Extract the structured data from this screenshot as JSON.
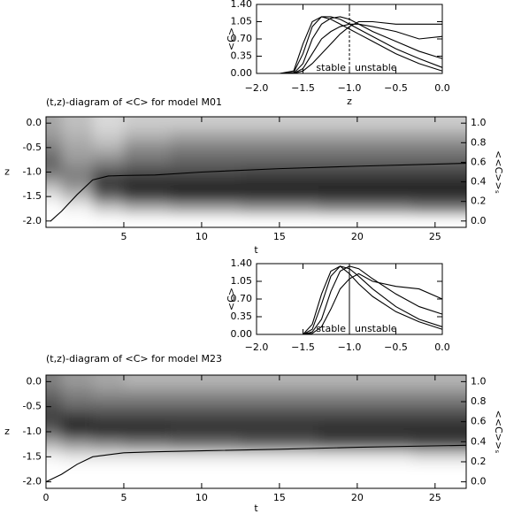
{
  "chart_data": [
    {
      "type": "line",
      "xlabel": "z",
      "ylabel": "<C>",
      "xlim": [
        -2,
        0
      ],
      "ylim": [
        0,
        1.4
      ],
      "xticks": [
        {
          "value": -2,
          "label": "−2.0"
        },
        {
          "value": -1.5,
          "label": "−1.5"
        },
        {
          "value": -1,
          "label": "−1.0"
        },
        {
          "value": -0.5,
          "label": "−0.5"
        },
        {
          "value": 0,
          "label": "0.0"
        }
      ],
      "yticks": [
        {
          "value": 0,
          "label": "0.00"
        },
        {
          "value": 0.35,
          "label": "0.35"
        },
        {
          "value": 0.7,
          "label": "0.70"
        },
        {
          "value": 1.05,
          "label": "1.05"
        },
        {
          "value": 1.4,
          "label": "1.40"
        }
      ],
      "vline": -1,
      "vline_dashed": true,
      "annotations": [
        "stable",
        "unstable"
      ],
      "x": [
        -2,
        -1.75,
        -1.6,
        -1.5,
        -1.4,
        -1.3,
        -1.2,
        -1.1,
        -1.0,
        -0.9,
        -0.75,
        -0.5,
        -0.25,
        0
      ],
      "series": [
        {
          "color": "#000000",
          "values": [
            0,
            0,
            0.05,
            0.6,
            1.05,
            1.15,
            1.1,
            1.0,
            0.9,
            0.8,
            0.65,
            0.4,
            0.2,
            0.05
          ]
        },
        {
          "color": "#000000",
          "values": [
            0,
            0,
            0.02,
            0.4,
            0.95,
            1.15,
            1.15,
            1.1,
            1.0,
            0.9,
            0.75,
            0.5,
            0.3,
            0.12
          ]
        },
        {
          "color": "#000000",
          "values": [
            0,
            0,
            0,
            0.2,
            0.7,
            1.0,
            1.12,
            1.15,
            1.1,
            1.0,
            0.85,
            0.65,
            0.45,
            0.3
          ]
        },
        {
          "color": "#000000",
          "values": [
            0,
            0,
            0,
            0.1,
            0.4,
            0.7,
            0.85,
            0.95,
            1.0,
            1.0,
            0.95,
            0.85,
            0.7,
            0.75
          ]
        },
        {
          "color": "#000000",
          "values": [
            0,
            0,
            0,
            0.05,
            0.2,
            0.4,
            0.6,
            0.8,
            0.95,
            1.05,
            1.05,
            1.0,
            1.0,
            1.0
          ]
        }
      ]
    },
    {
      "type": "heatmap",
      "title": "(t,z)-diagram of <C> for model M01",
      "xlabel": "t",
      "ylabel": "z",
      "y2label": "<<C>>ₛ",
      "xlim": [
        0,
        27
      ],
      "ylim": [
        -2.13,
        0.13
      ],
      "y2lim": [
        -0.065,
        1.065
      ],
      "xticks": [
        5,
        10,
        15,
        20,
        25
      ],
      "yticks": [
        {
          "value": -2,
          "label": "-2.0"
        },
        {
          "value": -1.5,
          "label": "-1.5"
        },
        {
          "value": -1,
          "label": "-1.0"
        },
        {
          "value": -0.5,
          "label": "-0.5"
        },
        {
          "value": 0,
          "label": "0.0"
        }
      ],
      "y2ticks": [
        {
          "value": 0,
          "label": "0.0"
        },
        {
          "value": 0.2,
          "label": "0.2"
        },
        {
          "value": 0.4,
          "label": "0.4"
        },
        {
          "value": 0.6,
          "label": "0.6"
        },
        {
          "value": 0.8,
          "label": "0.8"
        },
        {
          "value": 1,
          "label": "1.0"
        }
      ],
      "t": [
        0,
        2,
        4,
        6,
        10,
        15,
        20,
        27
      ],
      "z": [
        0,
        -0.25,
        -0.5,
        -0.75,
        -1.0,
        -1.25,
        -1.5,
        -1.75,
        -2.0
      ],
      "values": [
        [
          0.35,
          0.25,
          0.15,
          0.2,
          0.2,
          0.2,
          0.2,
          0.2
        ],
        [
          0.4,
          0.3,
          0.2,
          0.3,
          0.35,
          0.35,
          0.35,
          0.35
        ],
        [
          0.5,
          0.35,
          0.3,
          0.45,
          0.5,
          0.5,
          0.5,
          0.5
        ],
        [
          0.6,
          0.4,
          0.45,
          0.55,
          0.6,
          0.6,
          0.6,
          0.6
        ],
        [
          0.55,
          0.5,
          0.65,
          0.7,
          0.7,
          0.72,
          0.72,
          0.72
        ],
        [
          0.3,
          0.45,
          0.8,
          0.85,
          0.85,
          0.85,
          0.85,
          0.85
        ],
        [
          0.1,
          0.25,
          0.6,
          0.75,
          0.8,
          0.8,
          0.82,
          0.82
        ],
        [
          0,
          0.05,
          0.2,
          0.3,
          0.35,
          0.4,
          0.45,
          0.5
        ],
        [
          0,
          0,
          0,
          0,
          0,
          0,
          0,
          0
        ]
      ],
      "series": [
        {
          "color": "#000000",
          "axis": "y2",
          "x": [
            0.3,
            1,
            2,
            3,
            4,
            5,
            7,
            10,
            15,
            20,
            27
          ],
          "values": [
            0,
            0.1,
            0.27,
            0.42,
            0.46,
            0.465,
            0.47,
            0.5,
            0.535,
            0.56,
            0.59
          ]
        }
      ]
    },
    {
      "type": "line",
      "ylabel": "<C>",
      "xlim": [
        -2,
        0
      ],
      "ylim": [
        0,
        1.4
      ],
      "xticks": [
        {
          "value": -2,
          "label": "−2.0"
        },
        {
          "value": -1.5,
          "label": "−1.5"
        },
        {
          "value": -1,
          "label": "−1.0"
        },
        {
          "value": -0.5,
          "label": "−0.5"
        },
        {
          "value": 0,
          "label": "0.0"
        }
      ],
      "yticks": [
        {
          "value": 0,
          "label": "0.00"
        },
        {
          "value": 0.35,
          "label": "0.35"
        },
        {
          "value": 0.7,
          "label": "0.70"
        },
        {
          "value": 1.05,
          "label": "1.05"
        },
        {
          "value": 1.4,
          "label": "1.40"
        }
      ],
      "vline": -1,
      "vline_dashed": false,
      "annotations": [
        "stable",
        "unstable"
      ],
      "x": [
        -2,
        -1.75,
        -1.6,
        -1.5,
        -1.4,
        -1.3,
        -1.2,
        -1.1,
        -1.0,
        -0.9,
        -0.75,
        -0.5,
        -0.25,
        0
      ],
      "series": [
        {
          "color": "#000000",
          "values": [
            0,
            0,
            0,
            0,
            0.2,
            0.8,
            1.25,
            1.35,
            1.2,
            1.0,
            0.75,
            0.45,
            0.25,
            0.1
          ]
        },
        {
          "color": "#000000",
          "values": [
            0,
            0,
            0,
            0,
            0.1,
            0.6,
            1.15,
            1.35,
            1.3,
            1.15,
            0.9,
            0.55,
            0.3,
            0.15
          ]
        },
        {
          "color": "#000000",
          "values": [
            0,
            0,
            0,
            0,
            0.05,
            0.3,
            0.85,
            1.25,
            1.35,
            1.3,
            1.1,
            0.8,
            0.55,
            0.4
          ]
        },
        {
          "color": "#000000",
          "values": [
            0,
            0,
            0,
            0,
            0.02,
            0.15,
            0.5,
            0.9,
            1.1,
            1.2,
            1.05,
            0.95,
            0.9,
            0.7
          ]
        }
      ]
    },
    {
      "type": "heatmap",
      "title": "(t,z)-diagram of <C> for model M23",
      "xlabel": "t",
      "ylabel": "z",
      "y2label": "<<C>>ₛ",
      "xlim": [
        0,
        27
      ],
      "ylim": [
        -2.13,
        0.13
      ],
      "y2lim": [
        -0.065,
        1.065
      ],
      "xticks": [
        0,
        5,
        10,
        15,
        20,
        25
      ],
      "yticks": [
        {
          "value": -2,
          "label": "-2.0"
        },
        {
          "value": -1.5,
          "label": "-1.5"
        },
        {
          "value": -1,
          "label": "-1.0"
        },
        {
          "value": -0.5,
          "label": "-0.5"
        },
        {
          "value": 0,
          "label": "0.0"
        }
      ],
      "y2ticks": [
        {
          "value": 0,
          "label": "0.0"
        },
        {
          "value": 0.2,
          "label": "0.2"
        },
        {
          "value": 0.4,
          "label": "0.4"
        },
        {
          "value": 0.6,
          "label": "0.6"
        },
        {
          "value": 0.8,
          "label": "0.8"
        },
        {
          "value": 1,
          "label": "1.0"
        }
      ],
      "t": [
        0,
        2,
        4,
        6,
        10,
        15,
        20,
        27
      ],
      "z": [
        0,
        -0.25,
        -0.5,
        -0.75,
        -1.0,
        -1.25,
        -1.5,
        -1.75,
        -2.0
      ],
      "values": [
        [
          0.5,
          0.4,
          0.35,
          0.3,
          0.3,
          0.3,
          0.3,
          0.3
        ],
        [
          0.6,
          0.5,
          0.45,
          0.45,
          0.45,
          0.45,
          0.45,
          0.45
        ],
        [
          0.7,
          0.6,
          0.6,
          0.6,
          0.6,
          0.6,
          0.6,
          0.6
        ],
        [
          0.75,
          0.8,
          0.75,
          0.75,
          0.75,
          0.75,
          0.75,
          0.75
        ],
        [
          0.6,
          0.8,
          0.85,
          0.85,
          0.8,
          0.8,
          0.85,
          0.85
        ],
        [
          0.3,
          0.4,
          0.45,
          0.5,
          0.55,
          0.6,
          0.65,
          0.7
        ],
        [
          0.05,
          0.1,
          0.1,
          0.1,
          0.1,
          0.1,
          0.1,
          0.15
        ],
        [
          0,
          0,
          0,
          0,
          0,
          0,
          0,
          0
        ],
        [
          0,
          0,
          0,
          0,
          0,
          0,
          0,
          0
        ]
      ],
      "series": [
        {
          "color": "#000000",
          "axis": "y2",
          "x": [
            0,
            1,
            2,
            3,
            5,
            7,
            10,
            15,
            20,
            27
          ],
          "values": [
            0,
            0.075,
            0.175,
            0.25,
            0.29,
            0.3,
            0.31,
            0.325,
            0.345,
            0.365
          ]
        }
      ]
    }
  ]
}
